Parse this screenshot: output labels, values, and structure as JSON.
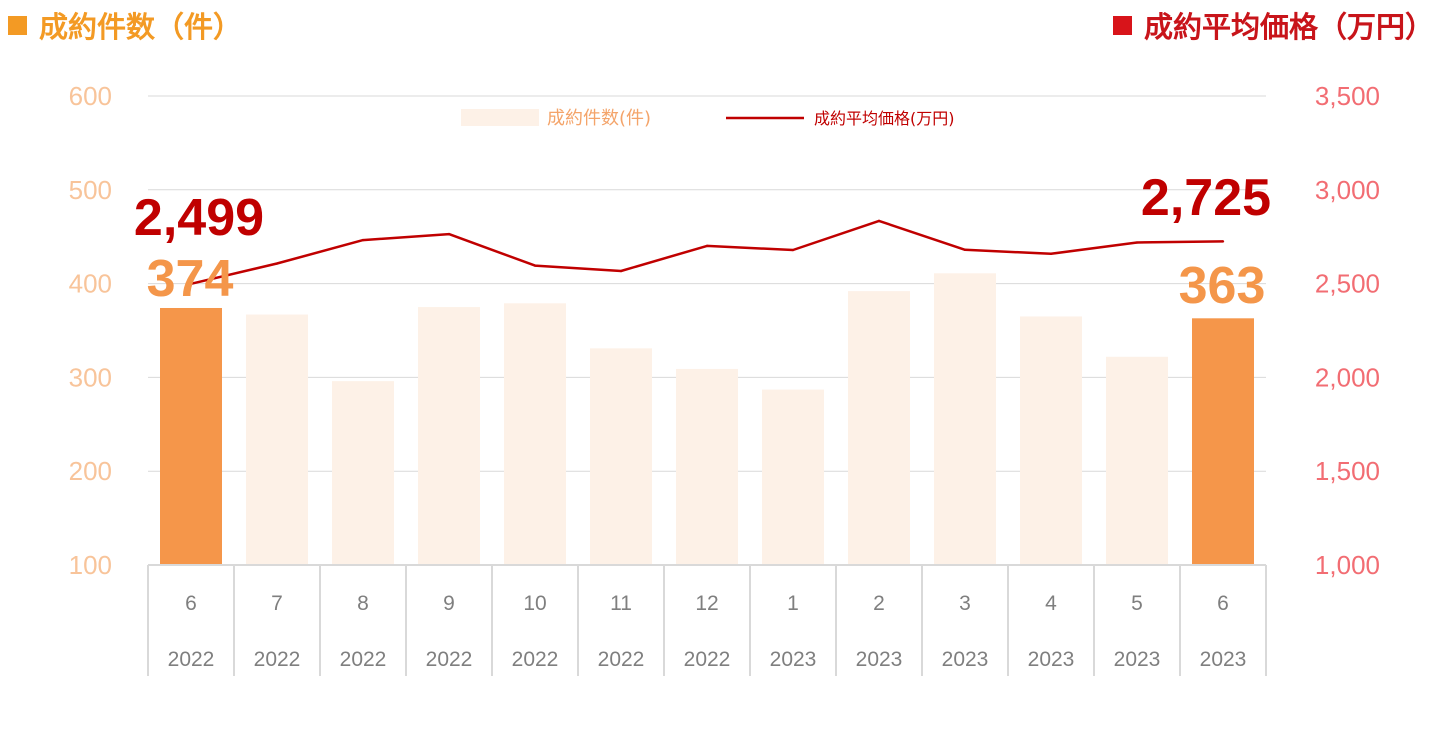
{
  "header": {
    "left_title": "成約件数（件）",
    "right_title": "成約平均価格（万円）",
    "left_color": "#f39a24",
    "right_color": "#d8141a"
  },
  "chart_data": {
    "type": "bar+line",
    "months": [
      "6",
      "7",
      "8",
      "9",
      "10",
      "11",
      "12",
      "1",
      "2",
      "3",
      "4",
      "5",
      "6"
    ],
    "years": [
      "2022",
      "2022",
      "2022",
      "2022",
      "2022",
      "2022",
      "2022",
      "2023",
      "2023",
      "2023",
      "2023",
      "2023",
      "2023"
    ],
    "series": [
      {
        "name": "成約件数(件)",
        "type": "bar",
        "axis": "left",
        "values": [
          374,
          367,
          296,
          375,
          379,
          331,
          309,
          287,
          392,
          411,
          365,
          322,
          363
        ],
        "color": "#fdf1e7",
        "highlight_color": "#f5964a",
        "highlighted": [
          0,
          12
        ]
      },
      {
        "name": "成約平均価格(万円)",
        "type": "line",
        "axis": "right",
        "values": [
          2499,
          2607,
          2732,
          2764,
          2596,
          2567,
          2701,
          2679,
          2834,
          2680,
          2659,
          2719,
          2725
        ],
        "color": "#c00000"
      }
    ],
    "left_axis": {
      "ylim": [
        100,
        600
      ],
      "ticks": [
        "100",
        "200",
        "300",
        "400",
        "500",
        "600"
      ]
    },
    "right_axis": {
      "ylim": [
        1000,
        3500
      ],
      "ticks": [
        "1,000",
        "1,500",
        "2,000",
        "2,500",
        "3,000",
        "3,500"
      ]
    },
    "data_labels": {
      "first_price": "2,499",
      "last_price": "2,725",
      "first_count": "374",
      "last_count": "363"
    },
    "legend_position": "top-center",
    "grid": true
  }
}
